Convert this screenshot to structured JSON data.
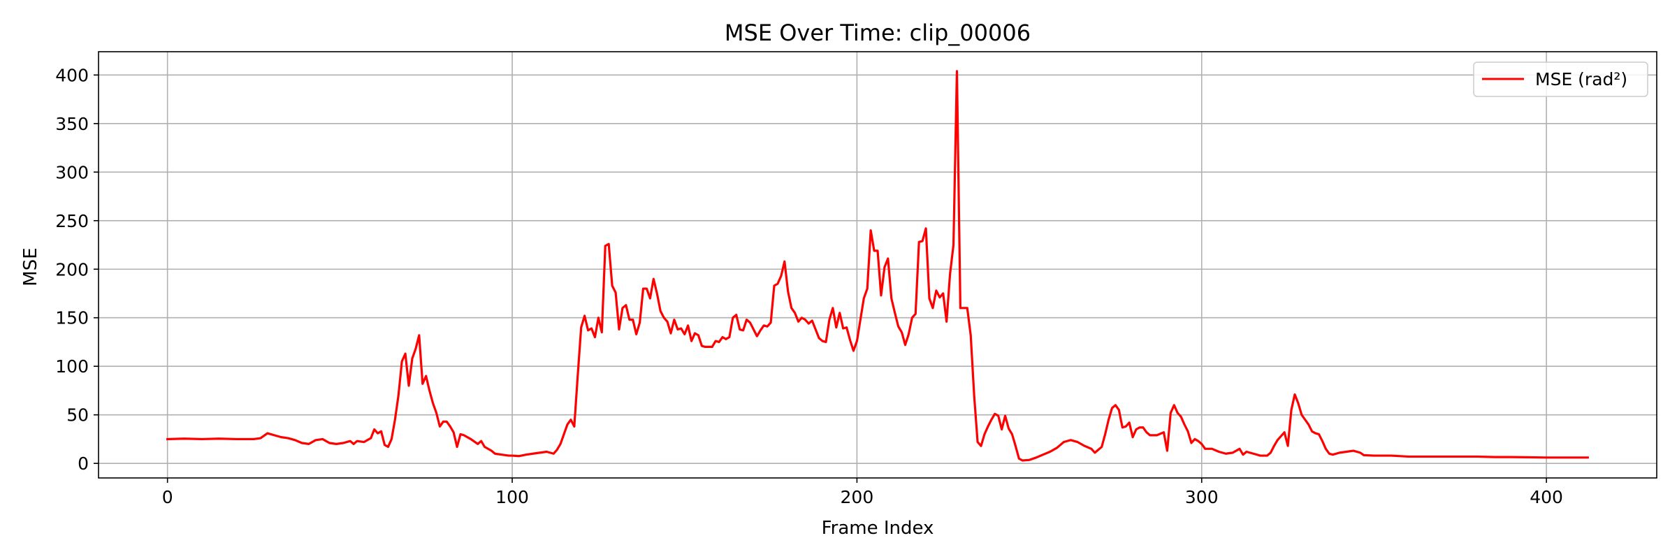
{
  "chart_data": {
    "type": "line",
    "title": "MSE Over Time: clip_00006",
    "xlabel": "Frame Index",
    "ylabel": "MSE",
    "xlim": [
      -20,
      432
    ],
    "ylim": [
      -15,
      424
    ],
    "xticks": [
      0,
      100,
      200,
      300,
      400
    ],
    "yticks": [
      0,
      50,
      100,
      150,
      200,
      250,
      300,
      350,
      400
    ],
    "grid": true,
    "legend_position": "top-right",
    "series": [
      {
        "name": "MSE (rad²)",
        "color": "#ff0000",
        "points": [
          [
            0,
            25
          ],
          [
            5,
            25.5
          ],
          [
            10,
            25
          ],
          [
            15,
            25.5
          ],
          [
            20,
            25
          ],
          [
            25,
            25
          ],
          [
            27,
            26
          ],
          [
            29,
            31
          ],
          [
            31,
            29
          ],
          [
            33,
            27
          ],
          [
            35,
            26
          ],
          [
            37,
            24
          ],
          [
            39,
            21
          ],
          [
            41,
            20
          ],
          [
            43,
            24
          ],
          [
            45,
            25
          ],
          [
            47,
            21
          ],
          [
            49,
            20
          ],
          [
            51,
            21
          ],
          [
            53,
            23
          ],
          [
            54,
            20
          ],
          [
            55,
            23
          ],
          [
            57,
            22
          ],
          [
            59,
            26
          ],
          [
            60,
            35
          ],
          [
            61,
            31
          ],
          [
            62,
            33
          ],
          [
            63,
            19
          ],
          [
            64,
            17
          ],
          [
            65,
            25
          ],
          [
            66,
            45
          ],
          [
            67,
            70
          ],
          [
            68,
            105
          ],
          [
            69,
            113
          ],
          [
            70,
            80
          ],
          [
            71,
            108
          ],
          [
            72,
            118
          ],
          [
            73,
            132
          ],
          [
            74,
            82
          ],
          [
            75,
            90
          ],
          [
            76,
            75
          ],
          [
            77,
            62
          ],
          [
            78,
            52
          ],
          [
            79,
            38
          ],
          [
            80,
            43
          ],
          [
            81,
            43
          ],
          [
            82,
            38
          ],
          [
            83,
            32
          ],
          [
            84,
            17
          ],
          [
            85,
            30
          ],
          [
            86,
            29
          ],
          [
            88,
            25
          ],
          [
            90,
            20
          ],
          [
            91,
            23
          ],
          [
            92,
            17
          ],
          [
            94,
            13
          ],
          [
            95,
            10
          ],
          [
            97,
            9
          ],
          [
            99,
            8
          ],
          [
            100,
            8
          ],
          [
            102,
            7.5
          ],
          [
            104,
            9
          ],
          [
            106,
            10
          ],
          [
            108,
            11
          ],
          [
            110,
            12
          ],
          [
            111,
            11
          ],
          [
            112,
            10
          ],
          [
            113,
            14
          ],
          [
            114,
            20
          ],
          [
            115,
            30
          ],
          [
            116,
            40
          ],
          [
            117,
            45
          ],
          [
            118,
            38
          ],
          [
            119,
            90
          ],
          [
            120,
            140
          ],
          [
            121,
            152
          ],
          [
            122,
            137
          ],
          [
            123,
            139
          ],
          [
            124,
            130
          ],
          [
            125,
            150
          ],
          [
            126,
            135
          ],
          [
            127,
            224
          ],
          [
            128,
            226
          ],
          [
            129,
            183
          ],
          [
            130,
            176
          ],
          [
            131,
            138
          ],
          [
            132,
            160
          ],
          [
            133,
            163
          ],
          [
            134,
            148
          ],
          [
            135,
            148
          ],
          [
            136,
            133
          ],
          [
            137,
            145
          ],
          [
            138,
            180
          ],
          [
            139,
            180
          ],
          [
            140,
            170
          ],
          [
            141,
            190
          ],
          [
            142,
            175
          ],
          [
            143,
            157
          ],
          [
            144,
            150
          ],
          [
            145,
            146
          ],
          [
            146,
            134
          ],
          [
            147,
            148
          ],
          [
            148,
            138
          ],
          [
            149,
            139
          ],
          [
            150,
            133
          ],
          [
            151,
            142
          ],
          [
            152,
            126
          ],
          [
            153,
            134
          ],
          [
            154,
            132
          ],
          [
            155,
            121
          ],
          [
            156,
            120
          ],
          [
            158,
            120
          ],
          [
            159,
            126
          ],
          [
            160,
            125
          ],
          [
            161,
            130
          ],
          [
            162,
            128
          ],
          [
            163,
            130
          ],
          [
            164,
            150
          ],
          [
            165,
            153
          ],
          [
            166,
            138
          ],
          [
            167,
            137
          ],
          [
            168,
            148
          ],
          [
            169,
            145
          ],
          [
            170,
            138
          ],
          [
            171,
            131
          ],
          [
            172,
            137
          ],
          [
            173,
            142
          ],
          [
            174,
            141
          ],
          [
            175,
            145
          ],
          [
            176,
            183
          ],
          [
            177,
            185
          ],
          [
            178,
            193
          ],
          [
            179,
            208
          ],
          [
            180,
            177
          ],
          [
            181,
            160
          ],
          [
            182,
            155
          ],
          [
            183,
            146
          ],
          [
            184,
            150
          ],
          [
            185,
            148
          ],
          [
            186,
            144
          ],
          [
            187,
            147
          ],
          [
            188,
            138
          ],
          [
            189,
            129
          ],
          [
            190,
            126
          ],
          [
            191,
            125
          ],
          [
            192,
            148
          ],
          [
            193,
            160
          ],
          [
            194,
            140
          ],
          [
            195,
            155
          ],
          [
            196,
            139
          ],
          [
            197,
            140
          ],
          [
            198,
            127
          ],
          [
            199,
            116
          ],
          [
            200,
            126
          ],
          [
            201,
            148
          ],
          [
            202,
            170
          ],
          [
            203,
            180
          ],
          [
            204,
            240
          ],
          [
            205,
            219
          ],
          [
            206,
            219
          ],
          [
            207,
            173
          ],
          [
            208,
            202
          ],
          [
            209,
            211
          ],
          [
            210,
            170
          ],
          [
            211,
            155
          ],
          [
            212,
            141
          ],
          [
            213,
            135
          ],
          [
            214,
            122
          ],
          [
            215,
            133
          ],
          [
            216,
            150
          ],
          [
            217,
            154
          ],
          [
            218,
            228
          ],
          [
            219,
            229
          ],
          [
            220,
            242
          ],
          [
            221,
            170
          ],
          [
            222,
            160
          ],
          [
            223,
            178
          ],
          [
            224,
            171
          ],
          [
            225,
            175
          ],
          [
            226,
            146
          ],
          [
            227,
            195
          ],
          [
            228,
            225
          ],
          [
            229,
            404
          ],
          [
            230,
            160
          ],
          [
            231,
            160
          ],
          [
            232,
            160
          ],
          [
            233,
            132
          ],
          [
            234,
            70
          ],
          [
            235,
            22
          ],
          [
            236,
            18
          ],
          [
            237,
            30
          ],
          [
            238,
            38
          ],
          [
            239,
            45
          ],
          [
            240,
            51
          ],
          [
            241,
            49
          ],
          [
            242,
            35
          ],
          [
            243,
            49
          ],
          [
            244,
            36
          ],
          [
            245,
            30
          ],
          [
            246,
            18
          ],
          [
            247,
            5
          ],
          [
            248,
            3
          ],
          [
            250,
            3.5
          ],
          [
            252,
            6
          ],
          [
            254,
            9
          ],
          [
            256,
            12
          ],
          [
            258,
            16
          ],
          [
            260,
            22
          ],
          [
            262,
            24
          ],
          [
            264,
            22
          ],
          [
            266,
            18
          ],
          [
            268,
            15
          ],
          [
            269,
            11
          ],
          [
            271,
            17
          ],
          [
            272,
            30
          ],
          [
            273,
            45
          ],
          [
            274,
            57
          ],
          [
            275,
            60
          ],
          [
            276,
            55
          ],
          [
            277,
            37
          ],
          [
            278,
            38
          ],
          [
            279,
            42
          ],
          [
            280,
            27
          ],
          [
            281,
            35
          ],
          [
            282,
            37
          ],
          [
            283,
            37
          ],
          [
            284,
            32
          ],
          [
            285,
            29
          ],
          [
            287,
            29
          ],
          [
            289,
            32
          ],
          [
            290,
            13
          ],
          [
            291,
            52
          ],
          [
            292,
            60
          ],
          [
            293,
            52
          ],
          [
            294,
            48
          ],
          [
            295,
            40
          ],
          [
            296,
            33
          ],
          [
            297,
            21
          ],
          [
            298,
            25
          ],
          [
            299,
            23
          ],
          [
            300,
            20
          ],
          [
            301,
            15
          ],
          [
            303,
            15
          ],
          [
            305,
            12
          ],
          [
            307,
            10
          ],
          [
            309,
            11
          ],
          [
            311,
            15
          ],
          [
            312,
            9
          ],
          [
            313,
            12
          ],
          [
            315,
            10
          ],
          [
            317,
            8
          ],
          [
            319,
            8
          ],
          [
            320,
            11
          ],
          [
            321,
            18
          ],
          [
            322,
            24
          ],
          [
            323,
            28
          ],
          [
            324,
            32
          ],
          [
            325,
            18
          ],
          [
            326,
            55
          ],
          [
            327,
            71
          ],
          [
            328,
            62
          ],
          [
            329,
            50
          ],
          [
            330,
            45
          ],
          [
            331,
            40
          ],
          [
            332,
            33
          ],
          [
            333,
            31
          ],
          [
            334,
            30
          ],
          [
            335,
            23
          ],
          [
            336,
            15
          ],
          [
            337,
            10
          ],
          [
            338,
            9
          ],
          [
            340,
            11
          ],
          [
            342,
            12
          ],
          [
            344,
            13
          ],
          [
            346,
            11
          ],
          [
            347,
            8.5
          ],
          [
            350,
            8
          ],
          [
            355,
            8
          ],
          [
            360,
            7
          ],
          [
            370,
            7
          ],
          [
            380,
            7
          ],
          [
            385,
            6.5
          ],
          [
            390,
            6.5
          ],
          [
            400,
            6
          ],
          [
            405,
            6
          ],
          [
            412,
            6
          ]
        ]
      }
    ]
  }
}
